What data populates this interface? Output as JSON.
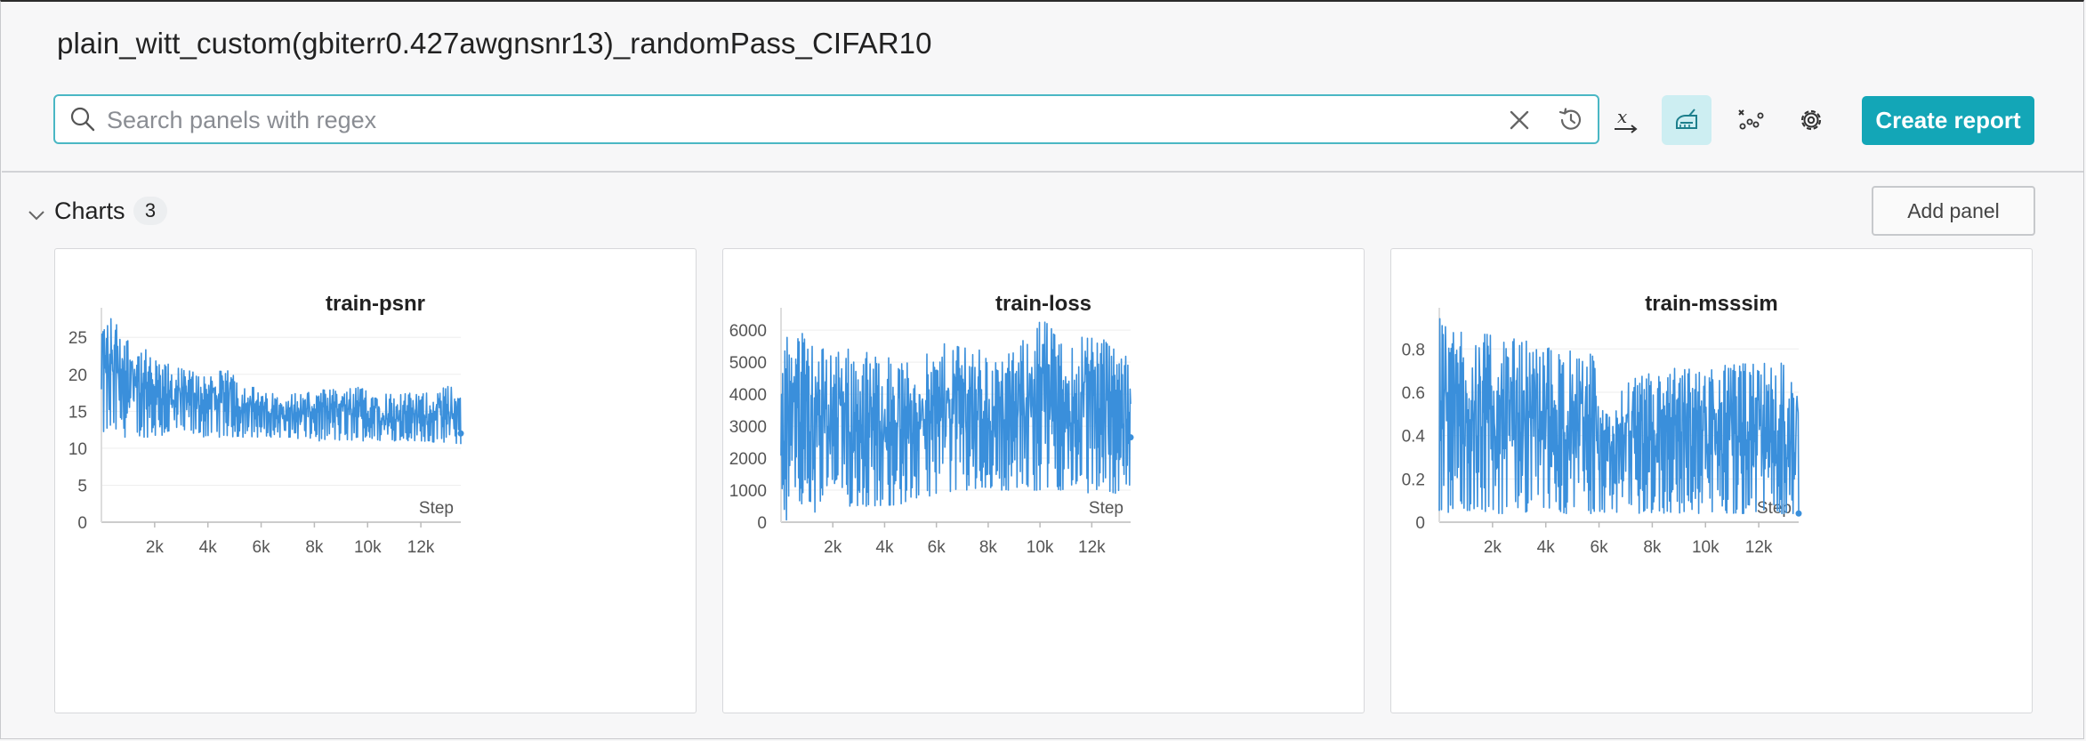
{
  "run_title": "plain_witt_custom(gbiterr0.427awgnsnr13)_randomPass_CIFAR10",
  "search": {
    "placeholder": "Search panels with regex",
    "value": ""
  },
  "toolbar": {
    "x_axis_icon": "x-axis-icon",
    "clean_icon": "brush-icon",
    "smoothing_icon": "scatter-points-icon",
    "settings_icon": "gear-icon",
    "create_report_label": "Create report"
  },
  "section": {
    "title": "Charts",
    "count": "3",
    "add_panel_label": "Add panel"
  },
  "colors": {
    "accent": "#13a6b7",
    "line": "#3a8fdb",
    "grid": "#eeeeee"
  },
  "chart_data": [
    {
      "type": "line",
      "title": "train-psnr",
      "xlabel": "Step",
      "ylabel": "",
      "x_ticks": [
        "2k",
        "4k",
        "6k",
        "8k",
        "10k",
        "12k"
      ],
      "y_ticks": [
        "0",
        "5",
        "10",
        "15",
        "20",
        "25"
      ],
      "xlim": [
        0,
        13500
      ],
      "ylim": [
        0,
        29
      ],
      "grid": true,
      "series": [
        {
          "x": [
            0,
            500,
            1000,
            1500,
            2000,
            3000,
            4000,
            5000,
            6000,
            7000,
            8000,
            9000,
            10000,
            11000,
            12000,
            13000,
            13500
          ],
          "y_low": [
            11.5,
            11.5,
            11.5,
            11.5,
            11.5,
            11.5,
            11.5,
            11.5,
            11.5,
            11.5,
            11,
            11,
            11,
            11,
            11,
            10.5,
            10.5
          ],
          "y_high": [
            28.5,
            28,
            25.5,
            24,
            22,
            21,
            20.5,
            20.5,
            17.5,
            17.5,
            18,
            18,
            18.5,
            17.5,
            17.5,
            18.5,
            18
          ],
          "last": 12
        }
      ]
    },
    {
      "type": "line",
      "title": "train-loss",
      "xlabel": "Step",
      "ylabel": "",
      "x_ticks": [
        "2k",
        "4k",
        "6k",
        "8k",
        "10k",
        "12k"
      ],
      "y_ticks": [
        "0",
        "1000",
        "2000",
        "3000",
        "4000",
        "5000",
        "6000"
      ],
      "xlim": [
        0,
        13500
      ],
      "ylim": [
        0,
        6700
      ],
      "grid": true,
      "series": [
        {
          "x": [
            0,
            500,
            1000,
            1500,
            2000,
            3000,
            4000,
            5000,
            6000,
            7000,
            8000,
            9000,
            10000,
            11000,
            12000,
            13000,
            13500
          ],
          "y_low": [
            50,
            100,
            200,
            300,
            400,
            500,
            500,
            600,
            900,
            1000,
            1000,
            1000,
            1000,
            1000,
            900,
            900,
            900
          ],
          "y_high": [
            5500,
            6600,
            5800,
            5500,
            5700,
            5400,
            5300,
            5000,
            5400,
            6000,
            5200,
            5300,
            6600,
            5500,
            6200,
            5600,
            5000
          ],
          "last": 2650
        }
      ]
    },
    {
      "type": "line",
      "title": "train-msssim",
      "xlabel": "Step",
      "ylabel": "",
      "x_ticks": [
        "2k",
        "4k",
        "6k",
        "8k",
        "10k",
        "12k"
      ],
      "y_ticks": [
        "0",
        "0.2",
        "0.4",
        "0.6",
        "0.8"
      ],
      "xlim": [
        0,
        13500
      ],
      "ylim": [
        0,
        0.99
      ],
      "grid": true,
      "series": [
        {
          "x": [
            0,
            500,
            1000,
            1500,
            2000,
            3000,
            4000,
            5000,
            5800,
            6000,
            7000,
            8000,
            9000,
            10000,
            11000,
            12000,
            13000,
            13500
          ],
          "y_low": [
            0.05,
            0.04,
            0.04,
            0.04,
            0.04,
            0.04,
            0.04,
            0.04,
            0.04,
            0.04,
            0.04,
            0.04,
            0.04,
            0.04,
            0.04,
            0.04,
            0.04,
            0.04
          ],
          "y_high": [
            0.98,
            0.95,
            0.92,
            0.9,
            0.86,
            0.85,
            0.82,
            0.8,
            0.78,
            0.5,
            0.65,
            0.7,
            0.72,
            0.72,
            0.74,
            0.74,
            0.75,
            0.72
          ],
          "last": 0.04
        }
      ]
    }
  ]
}
